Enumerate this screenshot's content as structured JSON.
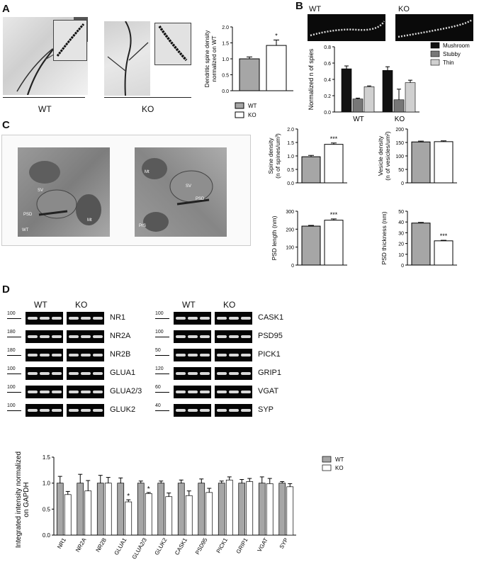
{
  "panels": {
    "A": {
      "letter": "A",
      "groups": [
        "WT",
        "KO"
      ],
      "chart": {
        "type": "bar",
        "ylabel": "Dendritic spine density normalized on WT",
        "ylim": [
          0,
          2.0
        ],
        "yticks": [
          "0.0",
          "0.5",
          "1.0",
          "1.5",
          "2.0"
        ],
        "categories": [
          "WT",
          "KO"
        ],
        "values": [
          1.0,
          1.42
        ],
        "errors": [
          0.06,
          0.17
        ],
        "significance": [
          "",
          "*"
        ],
        "colors": [
          "#a6a6a6",
          "#ffffff"
        ],
        "legend": [
          "WT",
          "KO"
        ]
      }
    },
    "B": {
      "letter": "B",
      "image_labels": [
        "WT",
        "KO"
      ],
      "chart": {
        "type": "bar",
        "ylabel": "Normalized n of spies",
        "ylim": [
          0,
          0.8
        ],
        "yticks": [
          "0.0",
          "0.2",
          "0.4",
          "0.6",
          "0.8"
        ],
        "categories": [
          "WT",
          "KO"
        ],
        "series": [
          {
            "name": "Mushroom",
            "values": [
              0.53,
              0.51
            ],
            "errors": [
              0.035,
              0.045
            ],
            "color": "#111111"
          },
          {
            "name": "Stubby",
            "values": [
              0.16,
              0.15
            ],
            "errors": [
              0.01,
              0.13
            ],
            "color": "#777777"
          },
          {
            "name": "Thin",
            "values": [
              0.31,
              0.36
            ],
            "errors": [
              0.01,
              0.03
            ],
            "color": "#d0d0d0"
          }
        ]
      }
    },
    "C": {
      "letter": "C",
      "em_labels_left": [
        "SV",
        "PSD",
        "Mt",
        "WT"
      ],
      "em_labels_right": [
        "Mt",
        "SV",
        "PSD",
        "PrS"
      ],
      "charts": [
        {
          "type": "bar",
          "ylabel": "Spine density (n of spines/um³)",
          "ylim": [
            0,
            2.0
          ],
          "yticks": [
            "0.0",
            "0.5",
            "1.0",
            "1.5",
            "2.0"
          ],
          "values": [
            0.97,
            1.43
          ],
          "errors": [
            0.05,
            0.05
          ],
          "significance": [
            "",
            "***"
          ]
        },
        {
          "type": "bar",
          "ylabel": "Vesicle density (n of vesicles/um²)",
          "ylim": [
            0,
            200
          ],
          "yticks": [
            "0",
            "50",
            "100",
            "150",
            "200"
          ],
          "values": [
            152,
            153
          ],
          "errors": [
            3,
            3
          ],
          "significance": [
            "",
            ""
          ]
        },
        {
          "type": "bar",
          "ylabel": "PSD length (nm)",
          "ylim": [
            0,
            300
          ],
          "yticks": [
            "0",
            "100",
            "200",
            "300"
          ],
          "values": [
            217,
            250
          ],
          "errors": [
            4,
            7
          ],
          "significance": [
            "",
            "***"
          ]
        },
        {
          "type": "bar",
          "ylabel": "PSD thickness (nm)",
          "ylim": [
            0,
            50
          ],
          "yticks": [
            "0",
            "10",
            "20",
            "30",
            "40",
            "50"
          ],
          "values": [
            39,
            22.5
          ],
          "errors": [
            0.6,
            0.5
          ],
          "significance": [
            "",
            "***"
          ]
        }
      ]
    },
    "D": {
      "letter": "D",
      "group_labels": [
        "WT",
        "KO"
      ],
      "left_blots": [
        {
          "marker": "100",
          "name": "NR1"
        },
        {
          "marker": "180",
          "name": "NR2A"
        },
        {
          "marker": "180",
          "name": "NR2B"
        },
        {
          "marker": "100",
          "name": "GLUA1"
        },
        {
          "marker": "100",
          "name": "GLUA2/3"
        },
        {
          "marker": "100",
          "name": "GLUK2"
        }
      ],
      "right_blots": [
        {
          "marker": "100",
          "name": "CASK1"
        },
        {
          "marker": "100",
          "name": "PSD95"
        },
        {
          "marker": "50",
          "name": "PICK1"
        },
        {
          "marker": "120",
          "name": "GRIP1"
        },
        {
          "marker": "60",
          "name": "VGAT"
        },
        {
          "marker": "40",
          "name": "SYP"
        }
      ]
    }
  },
  "chart_data": [
    {
      "type": "bar",
      "ylabel": "Integrated intensity normalized on GAPDH",
      "ylim": [
        0,
        1.5
      ],
      "yticks": [
        "0.0",
        "0.5",
        "1.0",
        "1.5"
      ],
      "categories": [
        "NR1",
        "NR2A",
        "NR2B",
        "GLUA1",
        "GLUA2/3",
        "GLUK2",
        "CASK1",
        "PSD95",
        "PICK1",
        "GRIP1",
        "VGAT",
        "SYP"
      ],
      "series": [
        {
          "name": "WT",
          "values": [
            1.0,
            1.0,
            1.0,
            1.0,
            1.0,
            1.0,
            1.0,
            1.0,
            1.0,
            1.0,
            1.0,
            1.0
          ],
          "errors": [
            0.13,
            0.17,
            0.15,
            0.1,
            0.04,
            0.04,
            0.06,
            0.08,
            0.04,
            0.07,
            0.12,
            0.03
          ],
          "color": "#a6a6a6"
        },
        {
          "name": "KO",
          "values": [
            0.78,
            0.85,
            1.0,
            0.64,
            0.8,
            0.74,
            0.76,
            0.82,
            1.06,
            1.03,
            0.99,
            0.93
          ],
          "errors": [
            0.06,
            0.2,
            0.11,
            0.04,
            0.02,
            0.07,
            0.09,
            0.08,
            0.06,
            0.06,
            0.1,
            0.06
          ],
          "color": "#ffffff"
        }
      ],
      "significance": [
        "",
        "",
        "",
        "*",
        "*",
        "",
        "",
        "",
        "",
        "",
        "",
        ""
      ],
      "legend": [
        "WT",
        "KO"
      ]
    }
  ]
}
